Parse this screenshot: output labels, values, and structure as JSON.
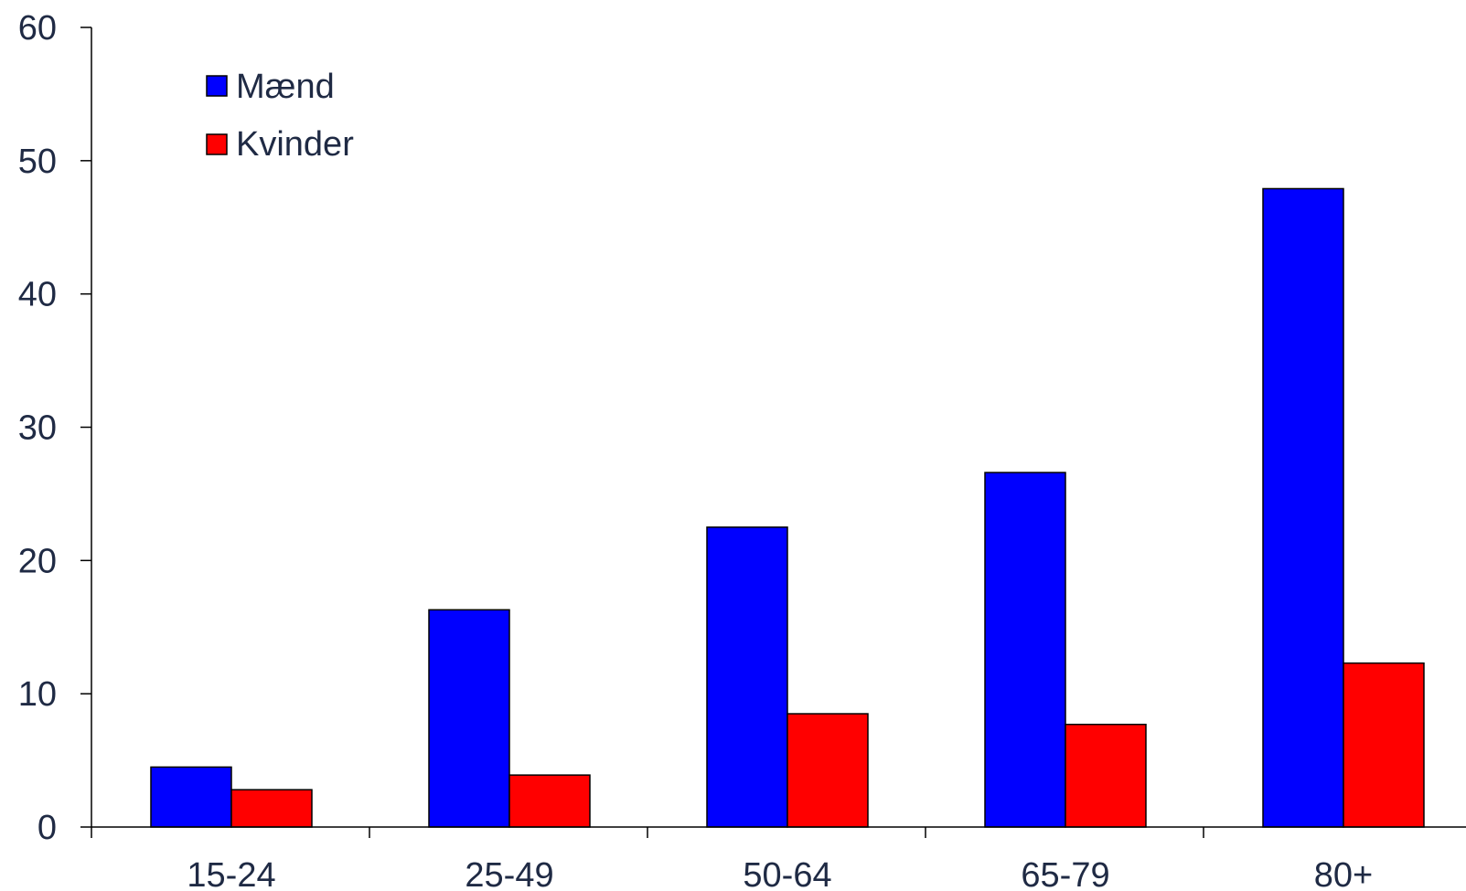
{
  "chart_data": {
    "type": "bar",
    "title": "",
    "xlabel": "",
    "ylabel": "",
    "categories": [
      "15-24",
      "25-49",
      "50-64",
      "65-79",
      "80+"
    ],
    "series": [
      {
        "name": "Mænd",
        "color": "#0000ff",
        "values": [
          4.5,
          16.3,
          22.5,
          26.6,
          47.9
        ]
      },
      {
        "name": "Kvinder",
        "color": "#ff0000",
        "values": [
          2.8,
          3.9,
          8.5,
          7.7,
          12.3
        ]
      }
    ],
    "ylim": [
      0,
      60
    ],
    "yticks": [
      0,
      10,
      20,
      30,
      40,
      50,
      60
    ],
    "grid": false,
    "legend_position": "top-left"
  }
}
